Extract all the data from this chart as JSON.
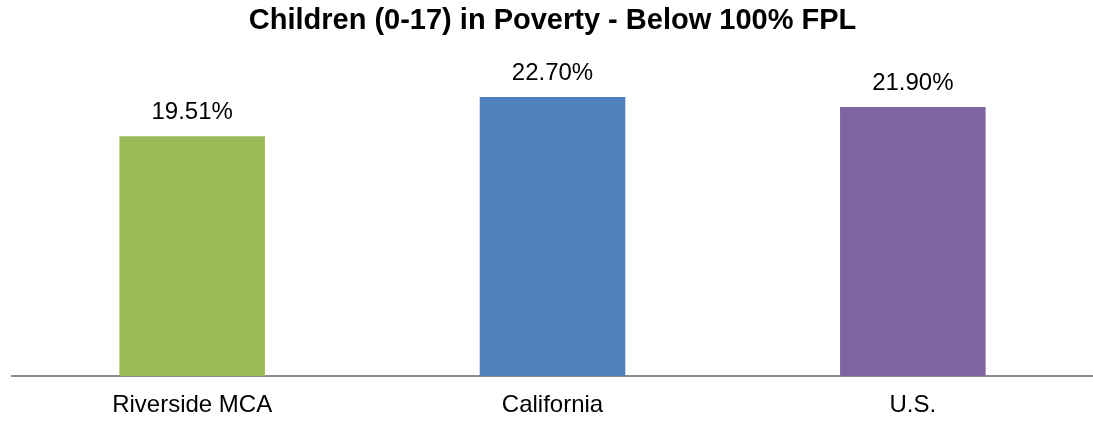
{
  "chart_data": {
    "type": "bar",
    "title": "Children (0-17) in Poverty - Below 100% FPL",
    "categories": [
      "Riverside MCA",
      "California",
      "U.S."
    ],
    "values": [
      19.51,
      22.7,
      21.9
    ],
    "colors": [
      "#9bbb59",
      "#4f81bd",
      "#8064a2"
    ],
    "value_labels": [
      "19.51%",
      "22.70%",
      "21.90%"
    ],
    "tick_labels": "x"
  }
}
